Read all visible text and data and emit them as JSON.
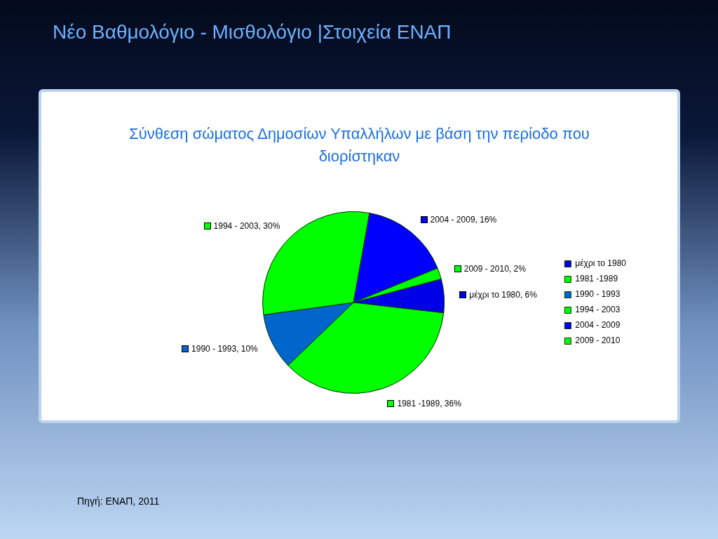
{
  "chart_data": {
    "type": "pie",
    "title": "Νέο Βαθμολόγιο - Μισθολόγιο |Στοιχεία ΕΝΑΠ",
    "subtitle": "Σύνθεση σώματος Δημοσίων Υπαλλήλων με βάση την περίοδο που διορίστηκαν",
    "categories": [
      "μέχρι το 1980",
      "1981 -1989",
      "1990 - 1993",
      "1994 - 2003",
      "2004 - 2009",
      "2009 - 2010"
    ],
    "values": [
      6,
      36,
      10,
      30,
      16,
      2
    ],
    "value_labels": [
      "μέχρι το 1980, 6%",
      "1981 -1989, 36%",
      "1990 - 1993, 10%",
      "1994 - 2003, 30%",
      "2004 - 2009, 16%",
      "2009 - 2010, 2%"
    ],
    "colors": [
      "#0000e6",
      "#00ff00",
      "#0066cc",
      "#00ff00",
      "#0000ff",
      "#00ff00"
    ],
    "legend": "right",
    "annotations": [
      "Πηγή: ΕΝΑΠ, 2011"
    ]
  }
}
